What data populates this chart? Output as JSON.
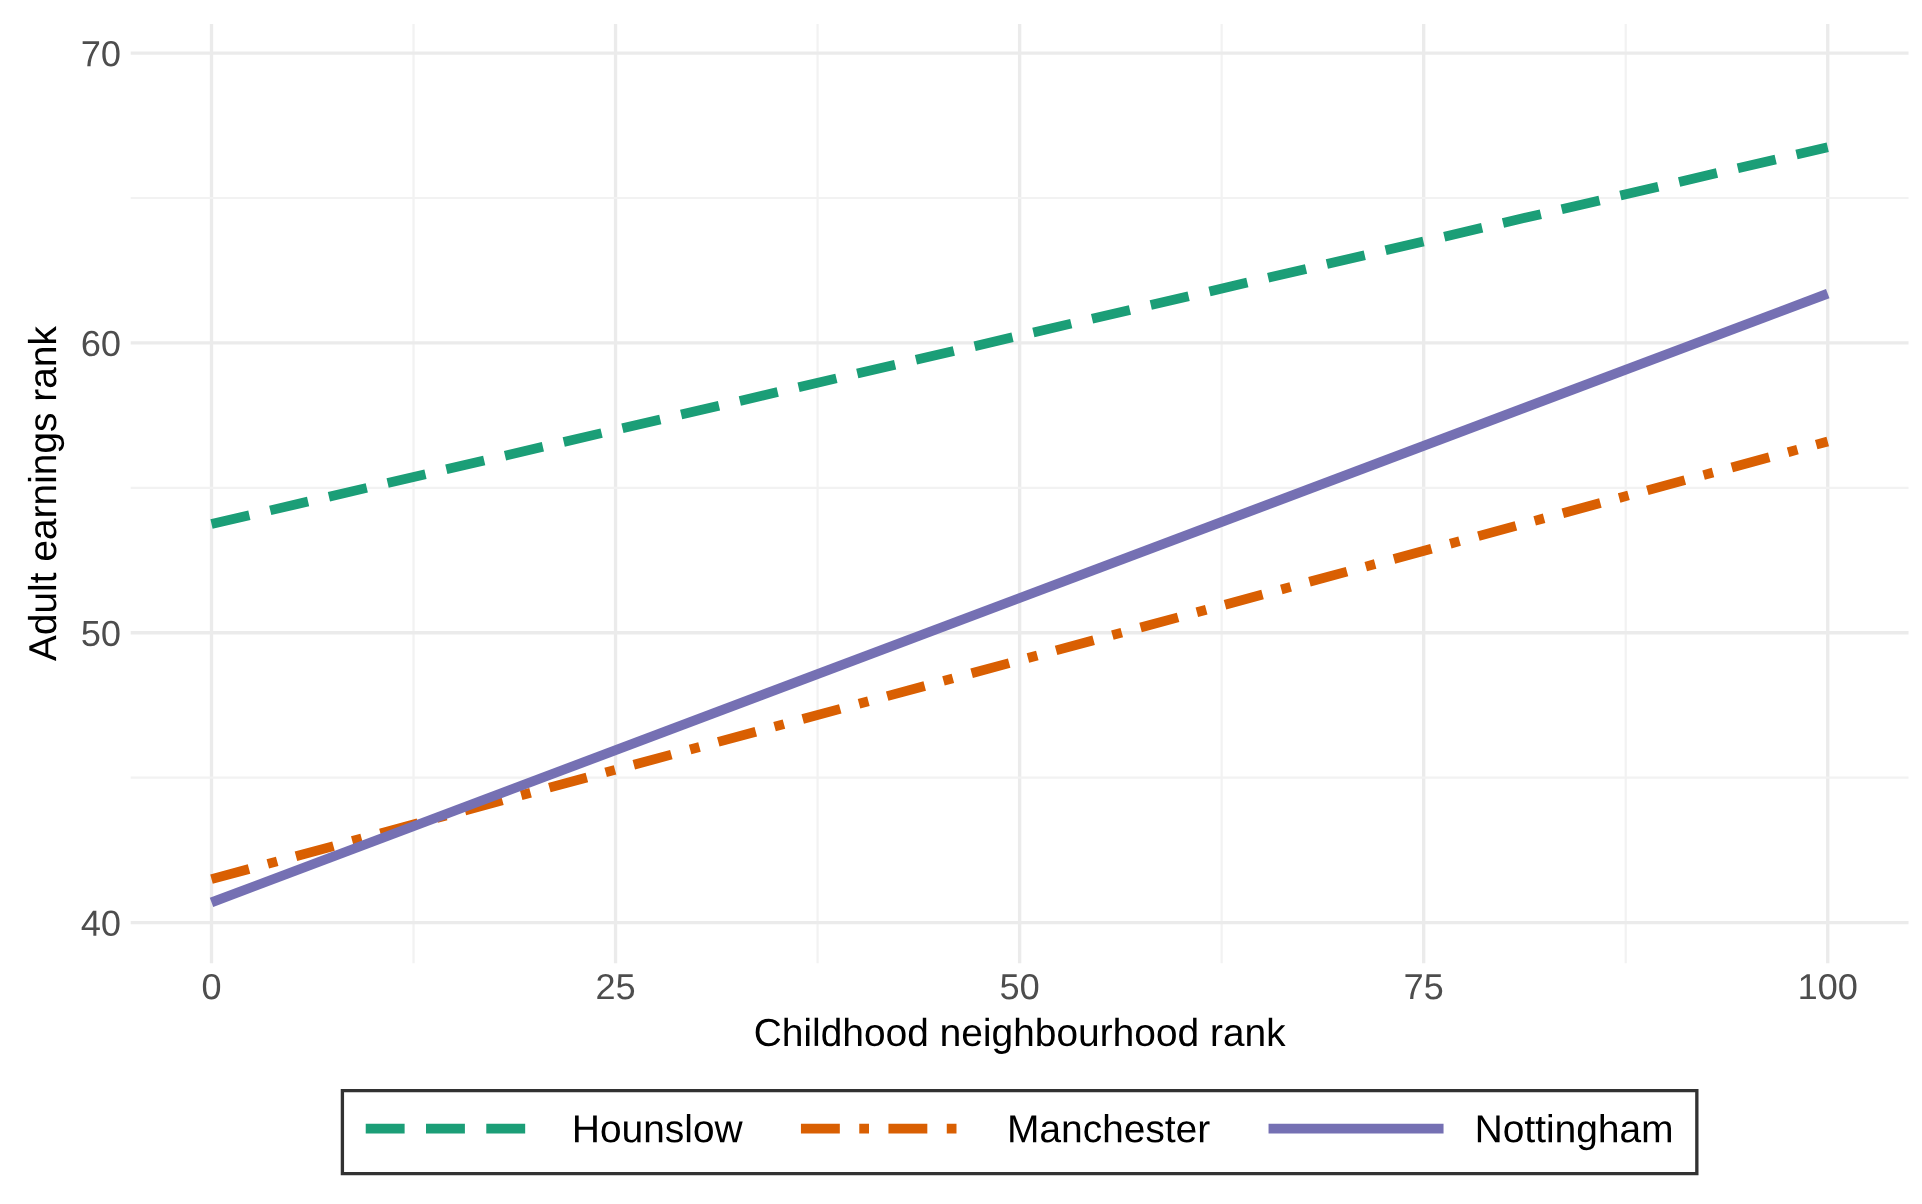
{
  "chart_data": {
    "type": "line",
    "xlabel": "Childhood neighbourhood rank",
    "ylabel": "Adult earnings rank",
    "xlim": [
      -5,
      105
    ],
    "ylim": [
      38.6,
      71
    ],
    "xticks": [
      0,
      25,
      50,
      75,
      100
    ],
    "yticks": [
      40,
      50,
      60,
      70
    ],
    "grid": true,
    "legend": "bottom",
    "x": [
      0,
      100
    ],
    "series": [
      {
        "name": "Hounslow",
        "color": "#1b9e77",
        "line_style": "dashed",
        "values": [
          53.75,
          66.75
        ]
      },
      {
        "name": "Manchester",
        "color": "#d95f02",
        "line_style": "dashdot",
        "values": [
          41.5,
          56.6
        ]
      },
      {
        "name": "Nottingham",
        "color": "#7570b3",
        "line_style": "solid",
        "values": [
          40.7,
          61.7
        ]
      }
    ]
  }
}
